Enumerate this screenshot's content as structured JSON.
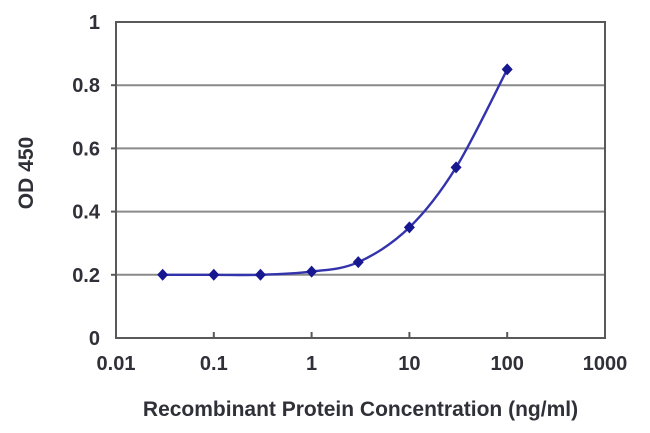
{
  "chart_data": {
    "type": "line",
    "title": "",
    "xlabel": "Recombinant Protein Concentration (ng/ml)",
    "ylabel": "OD 450",
    "x_scale": "log",
    "xlim": [
      0.01,
      1000
    ],
    "ylim": [
      0,
      1
    ],
    "x_ticks": [
      0.01,
      0.1,
      1,
      10,
      100,
      1000
    ],
    "x_tick_labels": [
      "0.01",
      "0.1",
      "1",
      "10",
      "100",
      "1000"
    ],
    "y_ticks": [
      0,
      0.2,
      0.4,
      0.6,
      0.8,
      1
    ],
    "y_tick_labels": [
      "0",
      "0.2",
      "0.4",
      "0.6",
      "0.8",
      "1"
    ],
    "grid": "horizontal",
    "legend": "none",
    "series": [
      {
        "name": "OD 450",
        "x": [
          0.03,
          0.1,
          0.3,
          1,
          3,
          10,
          30,
          100
        ],
        "y": [
          0.2,
          0.2,
          0.2,
          0.21,
          0.24,
          0.35,
          0.54,
          0.85
        ],
        "marker": "diamond",
        "smooth": true
      }
    ],
    "colors": {
      "line": "#3333ad",
      "marker": "#17178f",
      "grid": "#8a8a8a",
      "frame": "#595959",
      "text": "#303038",
      "background": "#ffffff"
    }
  }
}
